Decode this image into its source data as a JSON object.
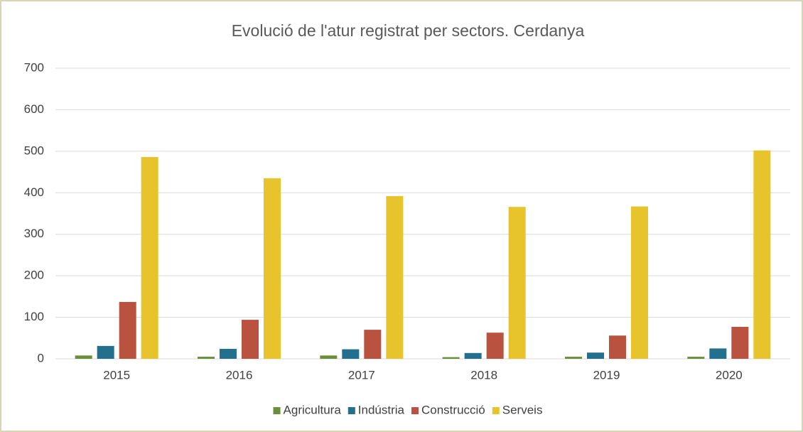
{
  "chart_data": {
    "type": "bar",
    "title": "Evolució de l'atur registrat per sectors. Cerdanya",
    "categories": [
      "2015",
      "2016",
      "2017",
      "2018",
      "2019",
      "2020"
    ],
    "series": [
      {
        "name": "Agricultura",
        "color": "#6b8e3a",
        "values": [
          8,
          5,
          8,
          4,
          5,
          5
        ]
      },
      {
        "name": "Indústria",
        "color": "#226f8e",
        "values": [
          31,
          24,
          23,
          14,
          15,
          25
        ]
      },
      {
        "name": "Construcció",
        "color": "#b9523f",
        "values": [
          137,
          94,
          70,
          63,
          56,
          77
        ]
      },
      {
        "name": "Serveis",
        "color": "#e8c42c",
        "values": [
          486,
          435,
          392,
          366,
          367,
          502
        ]
      }
    ],
    "ylim": [
      0,
      700
    ],
    "yticks": [
      0,
      100,
      200,
      300,
      400,
      500,
      600,
      700
    ],
    "grid": true,
    "legend": "bottom"
  }
}
